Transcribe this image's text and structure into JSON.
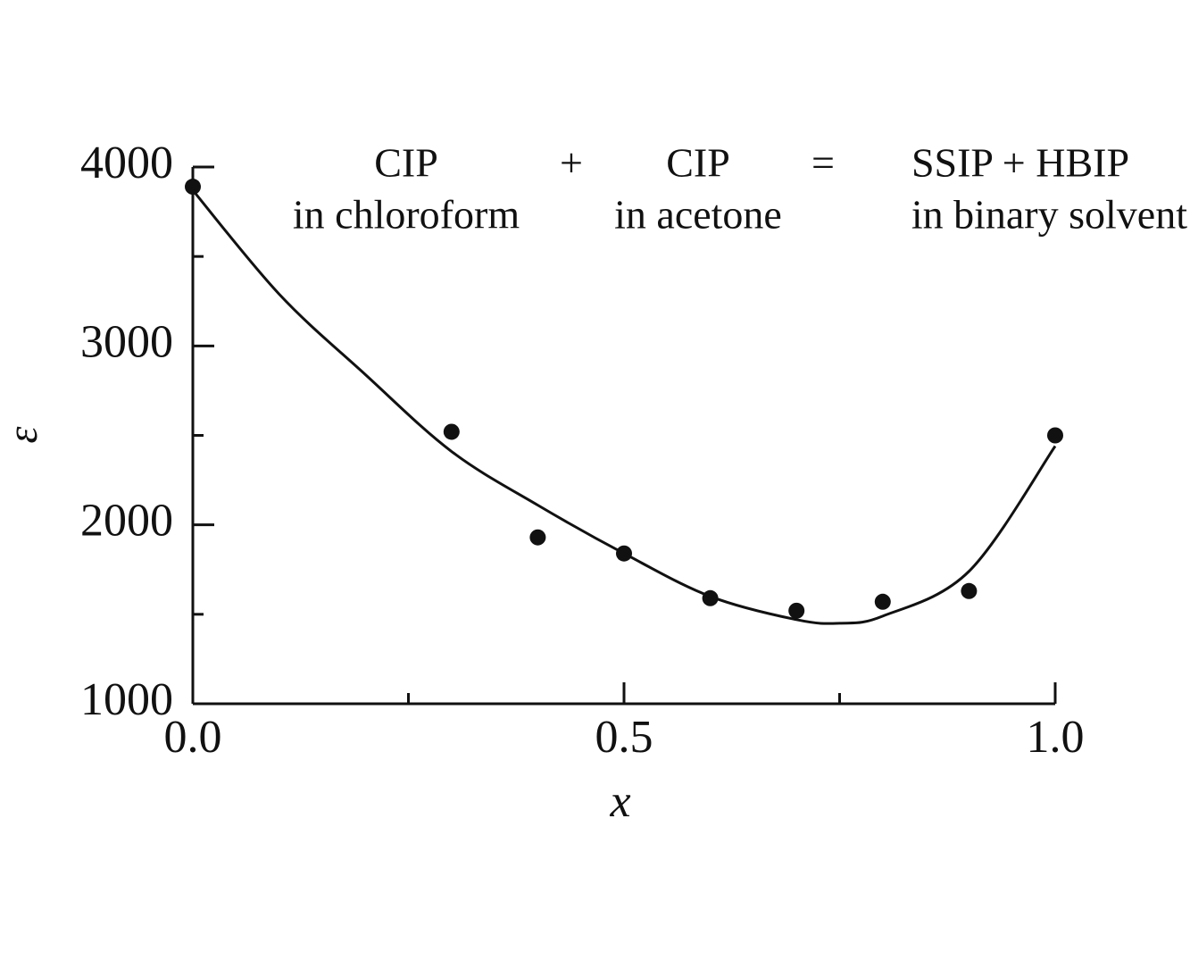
{
  "chart_data": {
    "type": "scatter",
    "x_label": "x",
    "y_label": "ε",
    "annotation": {
      "terms": [
        {
          "top": "CIP",
          "bottom": "in chloroform"
        },
        {
          "top": "CIP",
          "bottom": "in acetone"
        },
        {
          "top": "SSIP + HBIP",
          "bottom": "in binary solvent"
        }
      ],
      "operators": [
        "+",
        "="
      ]
    },
    "xlim": [
      0,
      1
    ],
    "ylim": [
      1000,
      4000
    ],
    "xticks": [
      {
        "value": 0,
        "label": "0.0"
      },
      {
        "value": 0.5,
        "label": "0.5"
      },
      {
        "value": 1,
        "label": "1.0"
      }
    ],
    "xminorticks": [
      0.25,
      0.75
    ],
    "yticks": [
      1000,
      2000,
      3000,
      4000
    ],
    "yminorticks": [
      1500,
      2500,
      3500
    ],
    "series": [
      {
        "kind": "points",
        "color": "#111111",
        "x": [
          0,
          0.3,
          0.4,
          0.5,
          0.6,
          0.7,
          0.8,
          0.9,
          1.0
        ],
        "values": [
          3890,
          2520,
          1930,
          1840,
          1590,
          1520,
          1570,
          1630,
          2500
        ]
      },
      {
        "kind": "curve",
        "color": "#111111",
        "x": [
          0,
          0.1,
          0.2,
          0.3,
          0.4,
          0.5,
          0.6,
          0.7,
          0.75,
          0.8,
          0.9,
          1.0
        ],
        "values": [
          3870,
          3290,
          2840,
          2410,
          2110,
          1840,
          1600,
          1470,
          1450,
          1490,
          1740,
          2440
        ]
      }
    ]
  }
}
